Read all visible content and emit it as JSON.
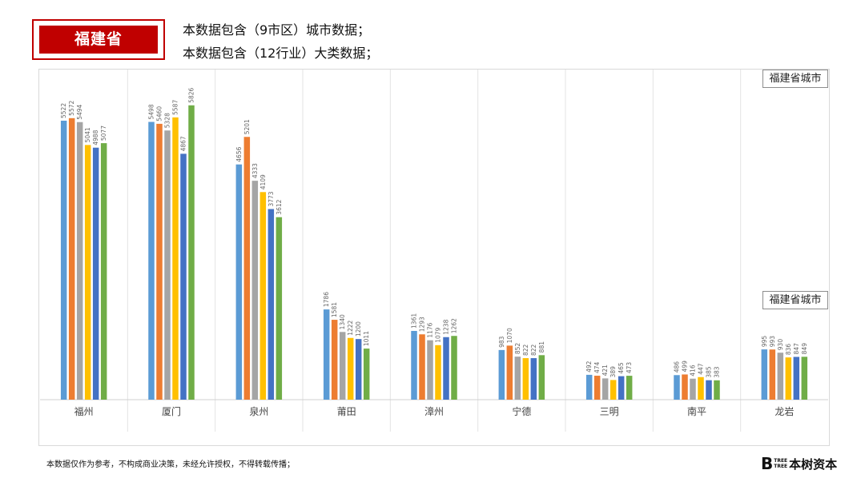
{
  "header": {
    "province": "福建省",
    "desc_line_1": "本数据包含（9市区）城市数据；",
    "desc_line_2": "本数据包含（12行业）大类数据；"
  },
  "legend": {
    "label_top": "福建省城市",
    "label_bottom": "福建省城市"
  },
  "footer": {
    "note": "本数据仅作为参考，不构成商业决策，未经允许授权，不得转载传播；",
    "brand_letter": "B",
    "brand_small_1": "TREE",
    "brand_small_2": "TREE",
    "brand_name": "本树资本"
  },
  "chart_data": {
    "type": "bar",
    "categories": [
      "福州",
      "厦门",
      "泉州",
      "莆田",
      "漳州",
      "宁德",
      "三明",
      "南平",
      "龙岩"
    ],
    "series": [
      {
        "values": [
          5522,
          5498,
          4656,
          1786,
          1361,
          983,
          492,
          486,
          995
        ],
        "color": "#5b9bd5"
      },
      {
        "values": [
          5572,
          5460,
          5201,
          1581,
          1293,
          1070,
          474,
          499,
          993
        ],
        "color": "#ed7d31"
      },
      {
        "values": [
          5494,
          5328,
          4333,
          1340,
          1176,
          852,
          421,
          416,
          930
        ],
        "color": "#a5a5a5"
      },
      {
        "values": [
          5041,
          5587,
          4109,
          1222,
          1079,
          822,
          389,
          447,
          836
        ],
        "color": "#ffc000"
      },
      {
        "values": [
          4988,
          4867,
          3773,
          1200,
          1238,
          822,
          465,
          385,
          847
        ],
        "color": "#4472c4"
      },
      {
        "values": [
          5077,
          5826,
          3612,
          1011,
          1262,
          881,
          473,
          383,
          849
        ],
        "color": "#70ad47"
      }
    ],
    "ylim": [
      0,
      6550
    ],
    "grid": false,
    "data_labels": true,
    "legend_position": "right"
  }
}
